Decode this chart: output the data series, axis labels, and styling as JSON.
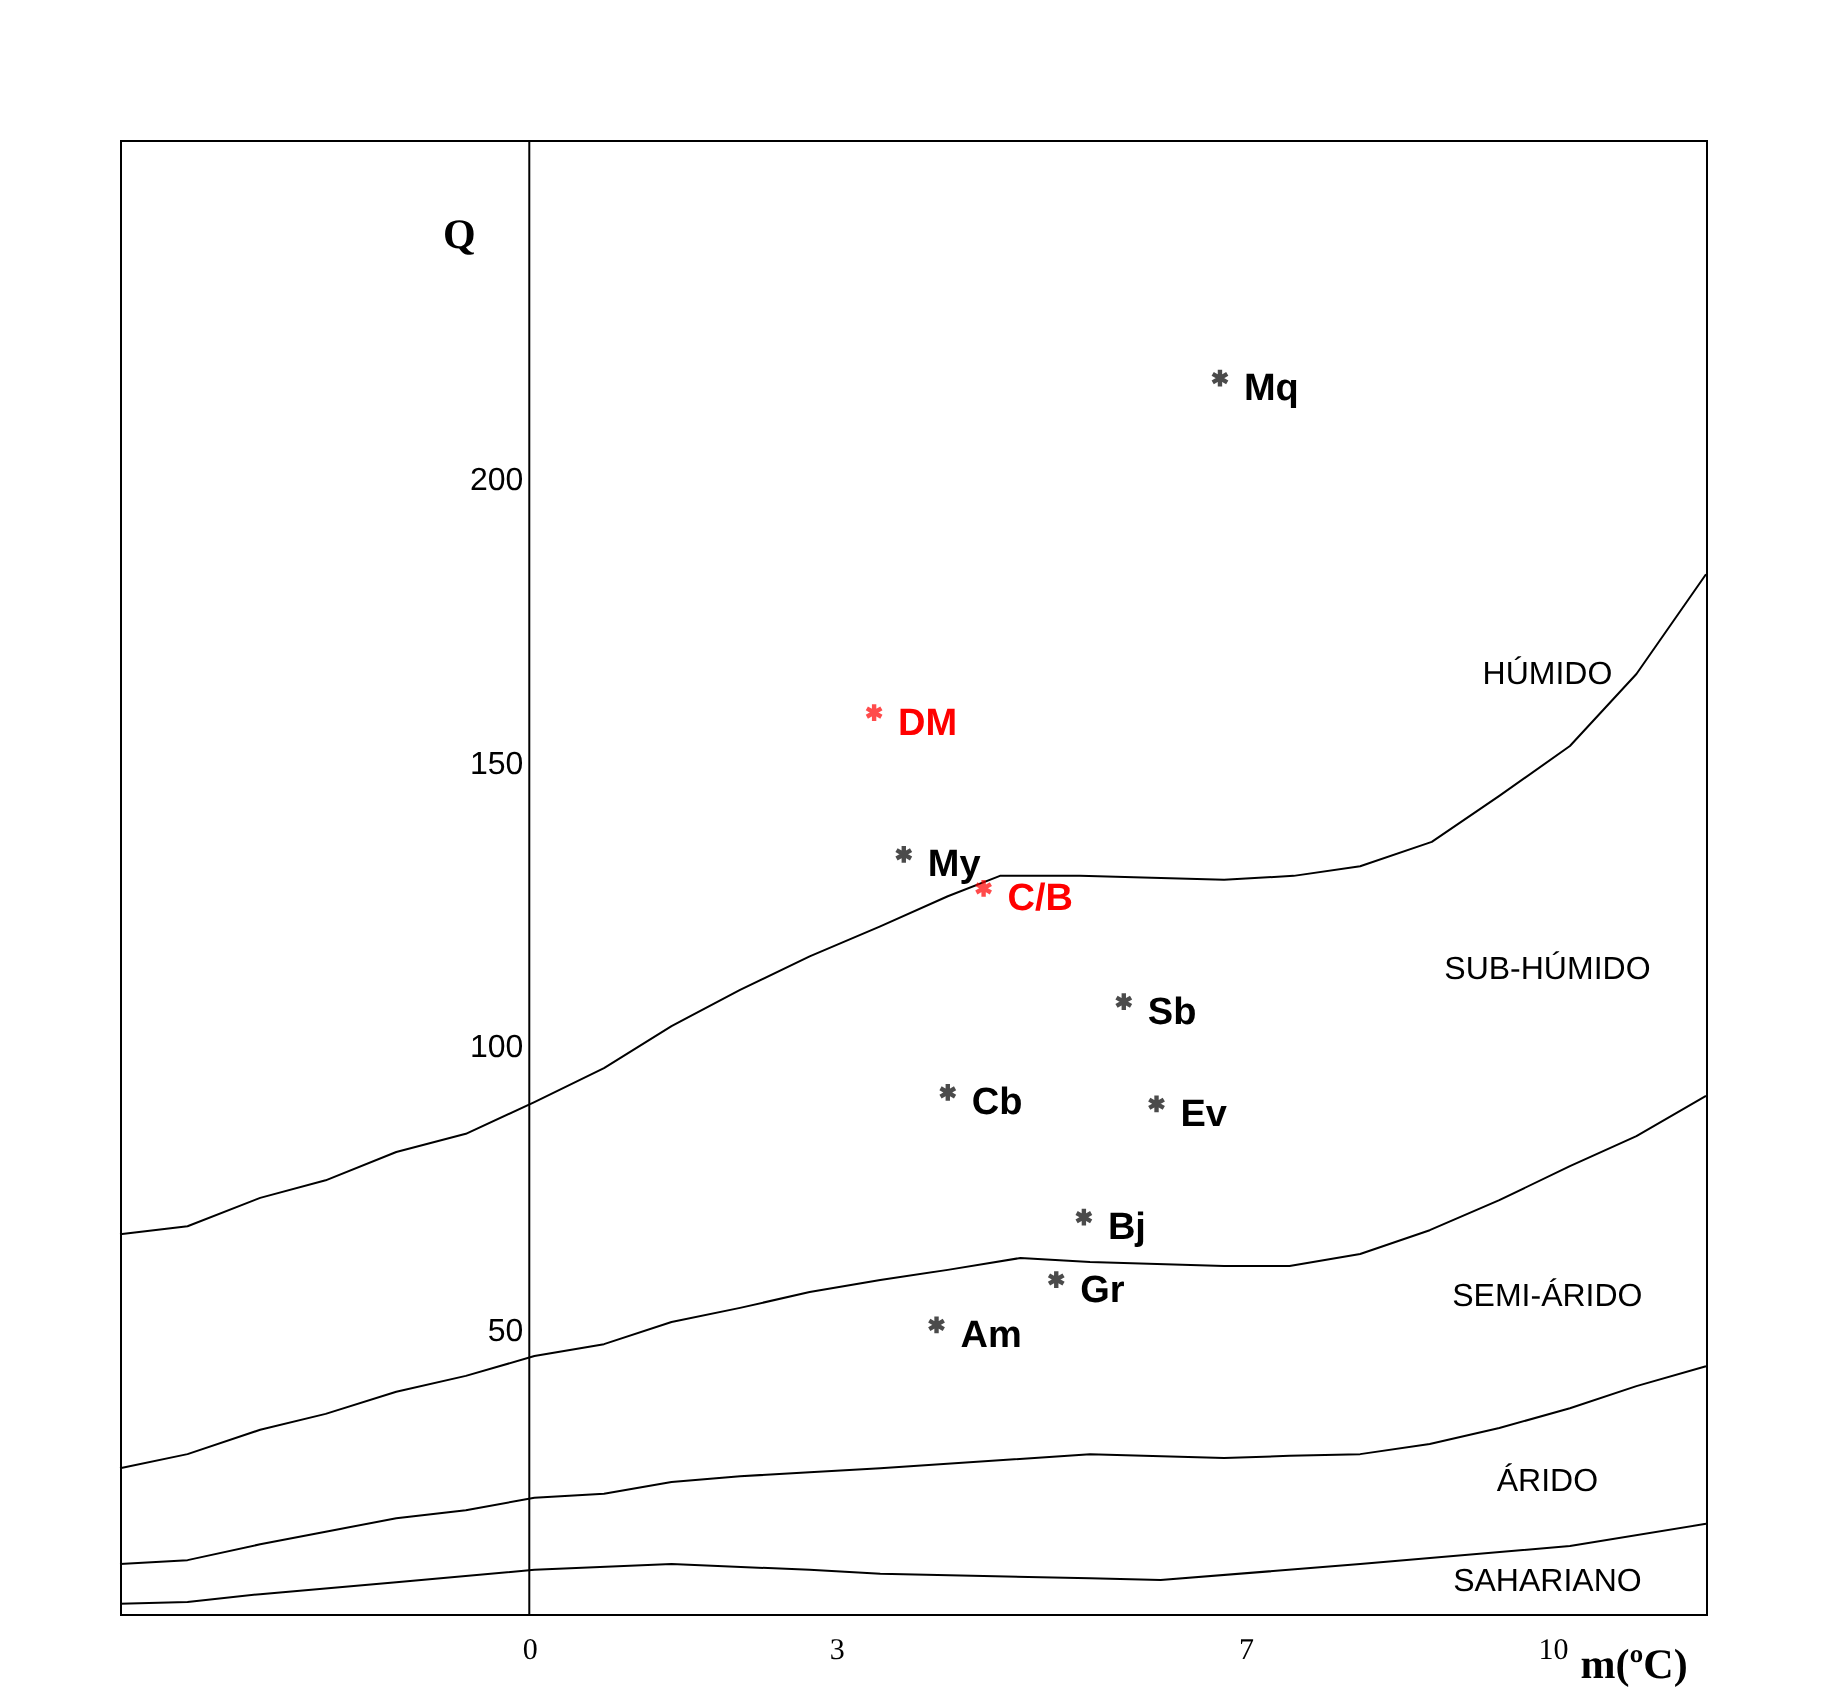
{
  "chart_data": {
    "type": "scatter",
    "xlabel": "m(ºC)",
    "ylabel": "Q",
    "xlim": [
      -4,
      11.5
    ],
    "ylim": [
      0,
      260
    ],
    "xticks": [
      0,
      3,
      7,
      10
    ],
    "yticks": [
      50,
      100,
      150,
      200
    ],
    "grid": false,
    "marker": "cross",
    "series": [
      {
        "type": "line",
        "color": "#000000",
        "line_style": "solid",
        "marker": "none",
        "x": [
          -4,
          -3.34,
          -2.63,
          -1.99,
          -1.3,
          -0.62,
          0.05,
          0.73,
          1.39,
          2.06,
          2.74,
          3.43,
          4.09,
          4.6,
          5.38,
          6.79,
          7.47,
          8.12,
          8.82,
          9.48,
          10.17,
          10.82,
          11.5
        ],
        "values": [
          67.0,
          68.4,
          73.4,
          76.5,
          81.5,
          84.7,
          90.3,
          96.3,
          103.7,
          110.1,
          116.0,
          121.3,
          126.6,
          130.2,
          130.2,
          129.5,
          130.2,
          131.9,
          136.2,
          144.3,
          153.1,
          165.8,
          183.4
        ]
      },
      {
        "type": "line",
        "color": "#000000",
        "line_style": "solid",
        "marker": "none",
        "x": [
          -4,
          -3.34,
          -2.63,
          -1.99,
          -1.3,
          -0.62,
          0.05,
          0.73,
          1.39,
          2.06,
          2.74,
          3.43,
          4.09,
          4.8,
          5.48,
          6.79,
          7.43,
          8.12,
          8.8,
          9.48,
          10.17,
          10.82,
          11.5
        ],
        "values": [
          25.7,
          28.2,
          32.5,
          35.3,
          39.2,
          42.0,
          45.5,
          47.6,
          51.5,
          54.0,
          56.8,
          58.9,
          60.7,
          62.8,
          62.1,
          61.4,
          61.4,
          63.5,
          67.7,
          73.0,
          79.0,
          84.3,
          91.4
        ]
      },
      {
        "type": "line",
        "color": "#000000",
        "line_style": "solid",
        "marker": "none",
        "x": [
          -4,
          -3.34,
          -2.63,
          -1.99,
          -1.3,
          -0.62,
          0.05,
          0.73,
          1.39,
          2.06,
          2.74,
          3.43,
          5.48,
          6.79,
          7.43,
          8.12,
          8.8,
          9.48,
          10.17,
          10.82,
          11.5
        ],
        "values": [
          8.8,
          9.5,
          12.3,
          14.5,
          16.9,
          18.3,
          20.5,
          21.2,
          23.3,
          24.3,
          25.0,
          25.7,
          28.2,
          27.5,
          27.9,
          28.2,
          30.0,
          32.8,
          36.3,
          40.2,
          43.7
        ]
      },
      {
        "type": "line",
        "color": "#000000",
        "line_style": "solid",
        "marker": "none",
        "x": [
          -4,
          -3.34,
          -2.63,
          -1.3,
          0.05,
          1.39,
          2.74,
          3.43,
          5.48,
          6.17,
          8.12,
          10.17,
          11.5
        ],
        "values": [
          1.8,
          2.1,
          3.5,
          5.6,
          7.8,
          8.8,
          7.8,
          7.1,
          6.3,
          6.0,
          8.8,
          12.0,
          15.9
        ]
      },
      {
        "name": "Mq",
        "color": "#000000",
        "x": [
          6.75
        ],
        "values": [
          218
        ]
      },
      {
        "name": "DM",
        "color": "#ff0000",
        "x": [
          3.37
        ],
        "values": [
          159
        ]
      },
      {
        "name": "My",
        "color": "#000000",
        "x": [
          3.66
        ],
        "values": [
          134
        ]
      },
      {
        "name": "C/B",
        "color": "#ff0000",
        "x": [
          4.44
        ],
        "values": [
          128
        ]
      },
      {
        "name": "Sb",
        "color": "#000000",
        "x": [
          5.81
        ],
        "values": [
          108
        ]
      },
      {
        "name": "Cb",
        "color": "#000000",
        "x": [
          4.09
        ],
        "values": [
          92
        ]
      },
      {
        "name": "Ev",
        "color": "#000000",
        "x": [
          6.13
        ],
        "values": [
          90
        ]
      },
      {
        "name": "Bj",
        "color": "#000000",
        "x": [
          5.42
        ],
        "values": [
          70
        ]
      },
      {
        "name": "Gr",
        "color": "#000000",
        "x": [
          5.15
        ],
        "values": [
          59
        ]
      },
      {
        "name": "Am",
        "color": "#000000",
        "x": [
          3.98
        ],
        "values": [
          51
        ]
      }
    ],
    "annotations": [
      "HÚMIDO",
      "SUB-HÚMIDO",
      "SEMI-ÁRIDO",
      "ÁRIDO",
      "SAHARIANO"
    ]
  }
}
